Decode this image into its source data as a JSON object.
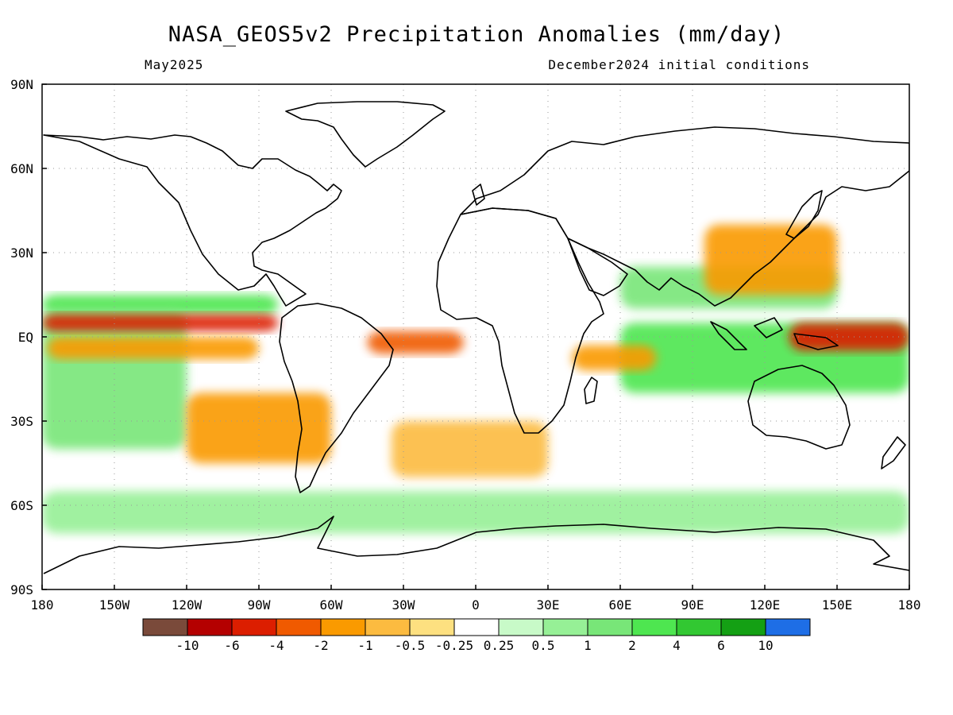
{
  "header": {
    "title": "NASA_GEOS5v2 Precipitation Anomalies (mm/day)",
    "left_label": "May2025",
    "right_label": "December2024 initial conditions"
  },
  "axes": {
    "lat_labels": [
      "90N",
      "60N",
      "30N",
      "EQ",
      "30S",
      "60S",
      "90S"
    ],
    "lat_values": [
      90,
      60,
      30,
      0,
      -30,
      -60,
      -90
    ],
    "lon_labels": [
      "180",
      "150W",
      "120W",
      "90W",
      "60W",
      "30W",
      "0",
      "30E",
      "60E",
      "90E",
      "120E",
      "150E",
      "180"
    ],
    "lon_values": [
      -180,
      -150,
      -120,
      -90,
      -60,
      -30,
      0,
      30,
      60,
      90,
      120,
      150,
      180
    ],
    "grid": "dotted"
  },
  "colorbar": {
    "colors": [
      "#7a4a3a",
      "#b40000",
      "#dc1e00",
      "#f05a00",
      "#fa9a00",
      "#fcbb40",
      "#fde080",
      "#ffffff",
      "#c8fac8",
      "#96f096",
      "#78e678",
      "#4ee650",
      "#32c832",
      "#14a014",
      "#1e6ee6"
    ],
    "labels": [
      "-10",
      "-6",
      "-4",
      "-2",
      "-1",
      "-0.5",
      "-0.25",
      "0.25",
      "0.5",
      "1",
      "2",
      "4",
      "6",
      "10"
    ]
  },
  "map_data": {
    "dry_bands": [
      {
        "lon": [
          -180,
          -82
        ],
        "lat": [
          2,
          8
        ],
        "level": "-4"
      },
      {
        "lon": [
          -178,
          -90
        ],
        "lat": [
          -8,
          0
        ],
        "level": "-1"
      },
      {
        "lon": [
          -45,
          -5
        ],
        "lat": [
          -6,
          2
        ],
        "level": "-2"
      },
      {
        "lon": [
          130,
          180
        ],
        "lat": [
          -5,
          5
        ],
        "level": "-4"
      },
      {
        "lon": [
          40,
          75
        ],
        "lat": [
          -12,
          -3
        ],
        "level": "-1"
      },
      {
        "lon": [
          -120,
          -60
        ],
        "lat": [
          -45,
          -20
        ],
        "level": "-1"
      },
      {
        "lon": [
          -35,
          30
        ],
        "lat": [
          -50,
          -30
        ],
        "level": "-0.5"
      },
      {
        "lon": [
          95,
          150
        ],
        "lat": [
          15,
          40
        ],
        "level": "-1"
      }
    ],
    "wet_bands": [
      {
        "lon": [
          -180,
          -82
        ],
        "lat": [
          8,
          15
        ],
        "level": "2"
      },
      {
        "lon": [
          -180,
          -120
        ],
        "lat": [
          -40,
          10
        ],
        "level": "1"
      },
      {
        "lon": [
          60,
          180
        ],
        "lat": [
          -20,
          5
        ],
        "level": "2"
      },
      {
        "lon": [
          -180,
          180
        ],
        "lat": [
          -70,
          -55
        ],
        "level": "0.5"
      },
      {
        "lon": [
          60,
          150
        ],
        "lat": [
          10,
          25
        ],
        "level": "1"
      }
    ]
  }
}
